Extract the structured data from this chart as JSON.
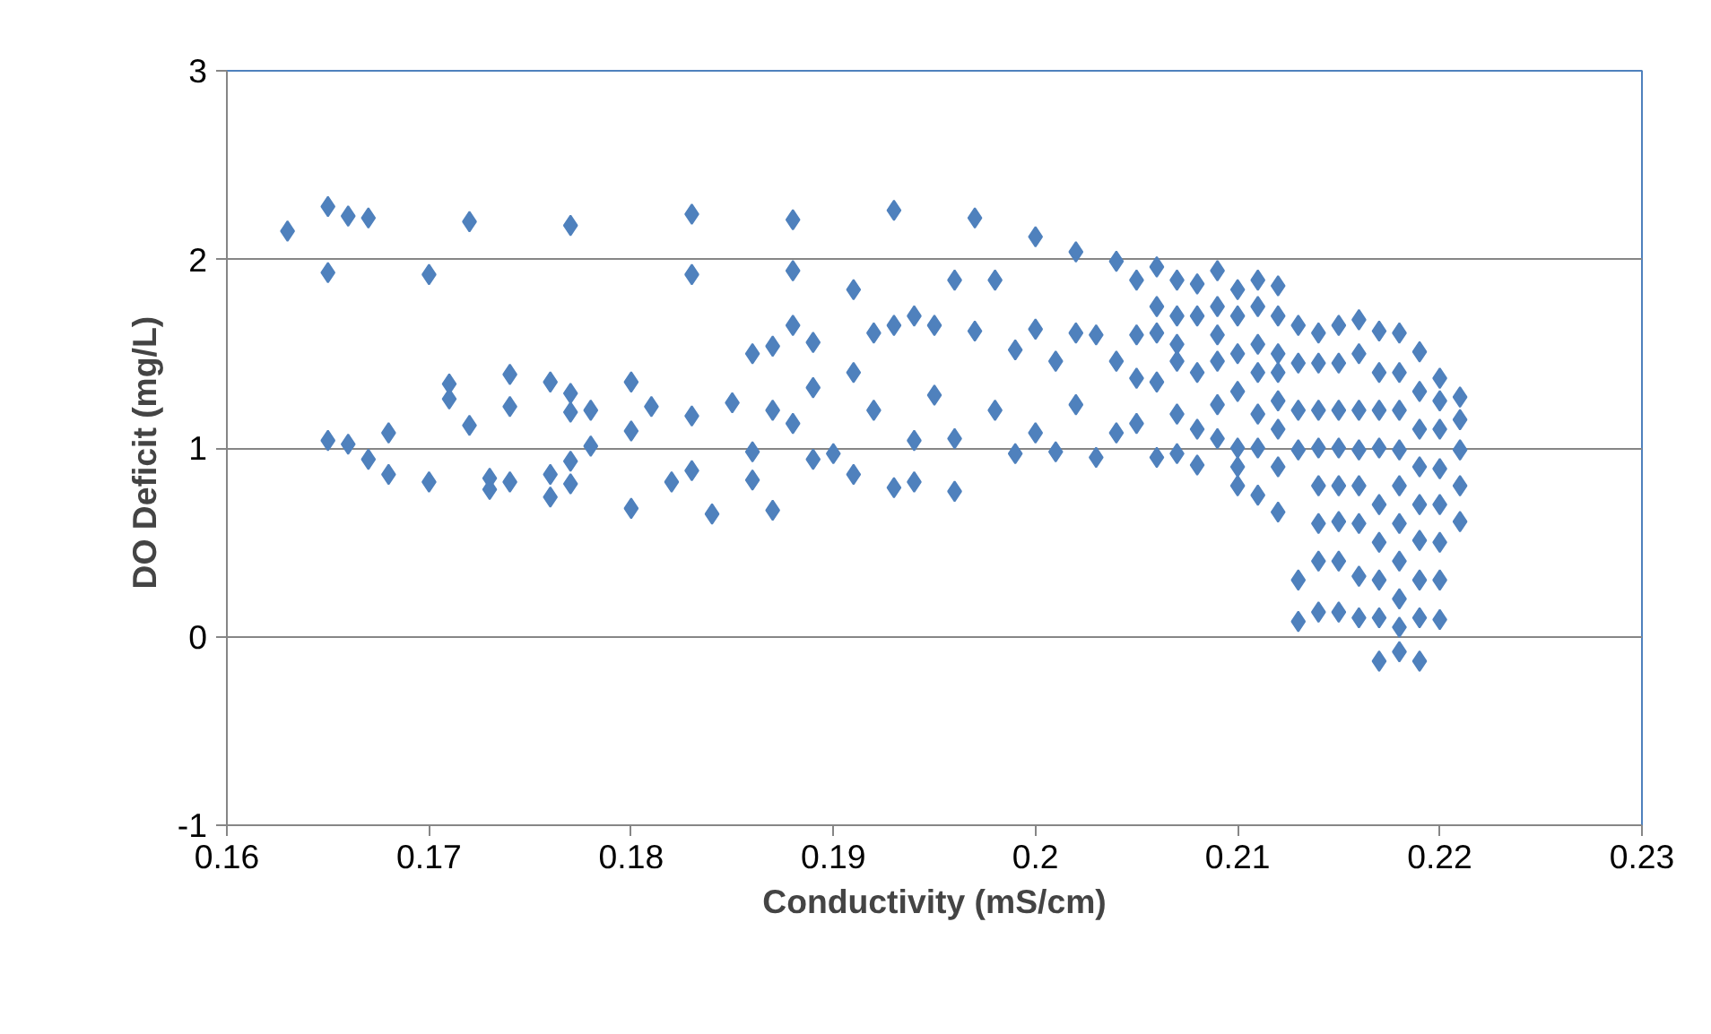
{
  "chart_data": {
    "type": "scatter",
    "xlabel": "Conductivity (mS/cm)",
    "ylabel": "DO Deficit  (mg/L)",
    "xlim": [
      0.16,
      0.23
    ],
    "xticks": [
      0.16,
      0.17,
      0.18,
      0.19,
      0.2,
      0.21,
      0.22,
      0.23
    ],
    "ylim": [
      -1,
      3
    ],
    "yticks": [
      -1,
      0,
      1,
      2,
      3
    ],
    "grid": "y",
    "marker": "diamond",
    "series": [
      {
        "color": "#4f81bd",
        "x": [
          0.163,
          0.165,
          0.165,
          0.165,
          0.166,
          0.166,
          0.167,
          0.167,
          0.168,
          0.168,
          0.17,
          0.17,
          0.171,
          0.171,
          0.172,
          0.172,
          0.173,
          0.173,
          0.174,
          0.174,
          0.174,
          0.176,
          0.176,
          0.176,
          0.177,
          0.177,
          0.177,
          0.177,
          0.177,
          0.178,
          0.178,
          0.18,
          0.18,
          0.18,
          0.181,
          0.182,
          0.183,
          0.183,
          0.183,
          0.183,
          0.184,
          0.185,
          0.186,
          0.186,
          0.186,
          0.187,
          0.187,
          0.187,
          0.188,
          0.188,
          0.188,
          0.188,
          0.189,
          0.189,
          0.189,
          0.19,
          0.191,
          0.191,
          0.191,
          0.192,
          0.192,
          0.193,
          0.193,
          0.193,
          0.194,
          0.194,
          0.194,
          0.195,
          0.195,
          0.196,
          0.196,
          0.196,
          0.197,
          0.197,
          0.198,
          0.198,
          0.199,
          0.199,
          0.2,
          0.2,
          0.2,
          0.201,
          0.201,
          0.202,
          0.202,
          0.202,
          0.203,
          0.203,
          0.204,
          0.204,
          0.204,
          0.205,
          0.205,
          0.206,
          0.206,
          0.206,
          0.207,
          0.207,
          0.207,
          0.208,
          0.208,
          0.209,
          0.209,
          0.209,
          0.21,
          0.21,
          0.211,
          0.211,
          0.211,
          0.212,
          0.212,
          0.212,
          0.213,
          0.213,
          0.213,
          0.214,
          0.214,
          0.214,
          0.215,
          0.215,
          0.215,
          0.216,
          0.216,
          0.216,
          0.217,
          0.217,
          0.217,
          0.218,
          0.218,
          0.218,
          0.219,
          0.219,
          0.219,
          0.22,
          0.22,
          0.22,
          0.221,
          0.221,
          0.221,
          0.205,
          0.205,
          0.206,
          0.206,
          0.207,
          0.207,
          0.207,
          0.208,
          0.208,
          0.208,
          0.209,
          0.209,
          0.209,
          0.21,
          0.21,
          0.21,
          0.21,
          0.21,
          0.211,
          0.211,
          0.211,
          0.211,
          0.212,
          0.212,
          0.212,
          0.212,
          0.212,
          0.213,
          0.213,
          0.213,
          0.214,
          0.214,
          0.214,
          0.214,
          0.214,
          0.215,
          0.215,
          0.215,
          0.215,
          0.215,
          0.216,
          0.216,
          0.216,
          0.216,
          0.216,
          0.217,
          0.217,
          0.217,
          0.217,
          0.217,
          0.217,
          0.218,
          0.218,
          0.218,
          0.218,
          0.218,
          0.218,
          0.218,
          0.219,
          0.219,
          0.219,
          0.219,
          0.219,
          0.219,
          0.22,
          0.22,
          0.22,
          0.22,
          0.22,
          0.221,
          0.221
        ],
        "values": [
          2.15,
          2.28,
          1.93,
          1.04,
          2.23,
          1.02,
          2.22,
          0.94,
          1.08,
          0.86,
          1.92,
          0.82,
          1.34,
          1.26,
          2.2,
          1.12,
          0.84,
          0.78,
          1.39,
          1.22,
          0.82,
          1.35,
          0.86,
          0.74,
          2.18,
          1.29,
          1.19,
          0.93,
          0.81,
          1.2,
          1.01,
          1.35,
          1.09,
          0.68,
          1.22,
          0.82,
          2.24,
          1.92,
          1.17,
          0.88,
          0.65,
          1.24,
          1.5,
          0.98,
          0.83,
          1.54,
          1.2,
          0.67,
          2.21,
          1.94,
          1.65,
          1.13,
          1.56,
          1.32,
          0.94,
          0.97,
          1.84,
          1.4,
          0.86,
          1.61,
          1.2,
          2.26,
          1.65,
          0.79,
          1.7,
          1.04,
          0.82,
          1.65,
          1.28,
          1.89,
          1.05,
          0.77,
          2.22,
          1.62,
          1.89,
          1.2,
          1.52,
          0.97,
          2.12,
          1.63,
          1.08,
          1.46,
          0.98,
          2.04,
          1.61,
          1.23,
          1.6,
          0.95,
          1.99,
          1.46,
          1.08,
          1.89,
          1.37,
          1.96,
          1.61,
          0.95,
          1.89,
          1.46,
          1.18,
          1.87,
          0.91,
          1.94,
          1.46,
          1.23,
          1.84,
          0.8,
          1.89,
          1.18,
          0.75,
          1.86,
          1.25,
          0.66,
          0.08,
          1.65,
          0.99,
          1.61,
          0.13,
          0.8,
          1.65,
          0.13,
          0.61,
          1.68,
          0.32,
          0.99,
          1.62,
          -0.13,
          0.7,
          1.61,
          -0.08,
          0.99,
          1.51,
          -0.13,
          0.51,
          1.37,
          0.09,
          0.89,
          1.27,
          0.61,
          0.99,
          1.6,
          1.13,
          1.75,
          1.35,
          1.7,
          1.55,
          0.97,
          1.7,
          1.4,
          1.1,
          1.75,
          1.6,
          1.05,
          1.7,
          1.5,
          1.3,
          1.0,
          0.9,
          1.75,
          1.55,
          1.4,
          1.0,
          1.7,
          1.5,
          1.4,
          1.1,
          0.9,
          1.45,
          1.2,
          0.3,
          1.45,
          1.2,
          1.0,
          0.6,
          0.4,
          1.45,
          1.2,
          1.0,
          0.8,
          0.4,
          1.5,
          1.2,
          0.8,
          0.6,
          0.1,
          1.4,
          1.2,
          1.0,
          0.5,
          0.3,
          0.1,
          1.4,
          1.2,
          0.8,
          0.6,
          0.4,
          0.2,
          0.05,
          1.3,
          1.1,
          0.9,
          0.7,
          0.3,
          0.1,
          1.25,
          1.1,
          0.7,
          0.5,
          0.3,
          1.15,
          0.8
        ]
      }
    ]
  }
}
